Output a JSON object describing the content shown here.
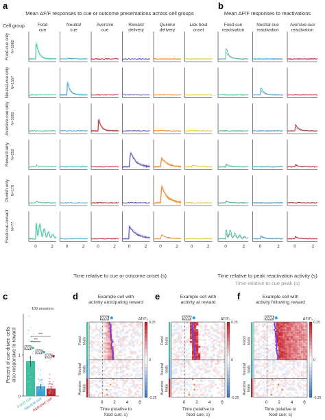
{
  "panel_a": {
    "letter": "a",
    "title": "Mean ΔF/F responses to cue or outcome presentations across cell groups",
    "cell_group_header": "Cell group",
    "columns": [
      {
        "label": "Food\ncue",
        "color": "#3dbf9e"
      },
      {
        "label": "Neutral\ncue",
        "color": "#3aa1d6"
      },
      {
        "label": "Aversive\ncue",
        "color": "#b8232b"
      },
      {
        "label": "Reward\ndelivery",
        "color": "#5a45b3"
      },
      {
        "label": "Quinine\ndelivery",
        "color": "#e87f1a"
      },
      {
        "label": "Lick bout\nonset",
        "color": "#d9c41b"
      }
    ],
    "rows": [
      {
        "label": "Food-cue only",
        "n": "N=1060"
      },
      {
        "label": "Neutral-cue only",
        "n": "N=1557"
      },
      {
        "label": "Aversive-cue only",
        "n": "N=1092"
      },
      {
        "label": "Reward only",
        "n": "N=252"
      },
      {
        "label": "Punish only",
        "n": "N=178"
      },
      {
        "label": "Food-cue-reward",
        "n": "N=77"
      }
    ],
    "tick_labels": [
      "0",
      "2"
    ],
    "xlabel": "Time relative to cue or outcome onset (s)"
  },
  "panel_b": {
    "letter": "b",
    "title": "Mean ΔF/F responses to reactivations",
    "columns": [
      {
        "label": "Food-cue\nreactivation",
        "color": "#3dbf9e"
      },
      {
        "label": "Neutral-cue\nreactivation",
        "color": "#3aa1d6"
      },
      {
        "label": "Aversive-cue\nreactivation",
        "color": "#b8232b"
      }
    ],
    "tick_labels": [
      "0",
      "2"
    ],
    "xlabel": "Time relative to peak reactivation activity (s)",
    "xlabel2": "Time relative to cue peak (s)"
  },
  "panel_c": {
    "letter": "c",
    "sessions_label": "109 sessions",
    "ylabel": "Percent of cue-driven cells\nalso responsive to reward",
    "yticks": [
      "0",
      "1"
    ],
    "sig": [
      "***",
      "***"
    ],
    "chart_data": {
      "type": "bar",
      "categories": [
        "Food cue",
        "Neutral cue",
        "Aversive cue"
      ],
      "values": [
        0.85,
        0.24,
        0.18
      ],
      "colors": [
        "#3dbf9e",
        "#3aa1d6",
        "#b8232b"
      ],
      "ylim": [
        0,
        2
      ]
    }
  },
  "heatmaps": [
    {
      "letter": "d",
      "title": "Example cell with\nactivity anticipating reward",
      "dot_color": "#7a3fd1"
    },
    {
      "letter": "e",
      "title": "Example cell with\nactivity at reward",
      "dot_color": "#7a3fd1"
    },
    {
      "letter": "f",
      "title": "Example cell with\nactivity following reward",
      "dot_color": "#7a3fd1"
    }
  ],
  "heatmap_common": {
    "trial_groups": [
      "Food\ntrials",
      "Neutral\ntrials",
      "Aversive\ntrials"
    ],
    "xticks": [
      "0",
      "2",
      "4",
      "6"
    ],
    "xlabel": "Time (relative to\nfood cue; s)",
    "cbar_label": "ΔF/F₀",
    "cbar_ticks": [
      "0.25",
      "0",
      "-0.25"
    ]
  }
}
